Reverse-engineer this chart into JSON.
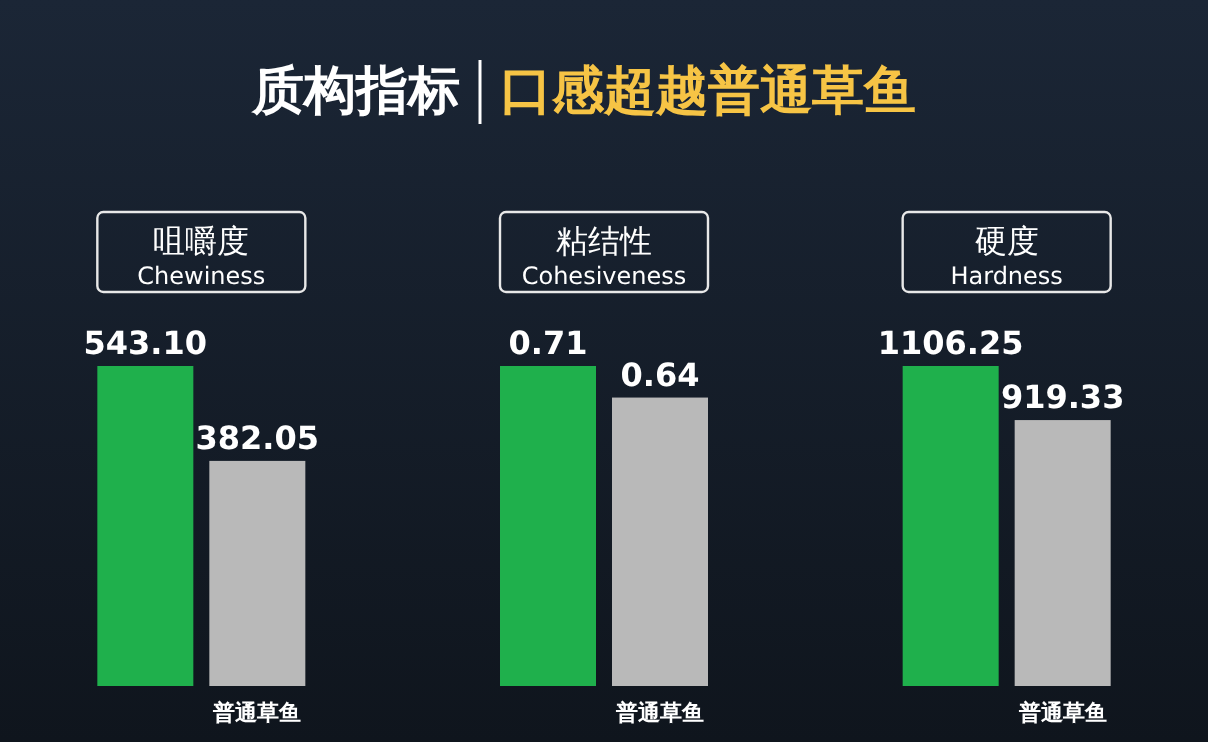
{
  "chart_data": [
    {
      "type": "bar",
      "title": "咀嚼度",
      "subtitle": "Chewiness",
      "annotations": [
        "质构指标",
        "口感超越普通草鱼"
      ],
      "categories": [
        null,
        "普通草鱼"
      ],
      "values": [
        543.1,
        382.05
      ],
      "value_labels": [
        "543.10",
        "382.05"
      ],
      "colors": [
        "#1fb04c",
        "#b9b9b9"
      ]
    },
    {
      "type": "bar",
      "title": "粘结性",
      "subtitle": "Cohesiveness",
      "categories": [
        null,
        "普通草鱼"
      ],
      "values": [
        0.71,
        0.64
      ],
      "value_labels": [
        "0.71",
        "0.64"
      ],
      "colors": [
        "#1fb04c",
        "#b9b9b9"
      ]
    },
    {
      "type": "bar",
      "title": "硬度",
      "subtitle": "Hardness",
      "categories": [
        null,
        "普通草鱼"
      ],
      "values": [
        1106.25,
        919.33
      ],
      "value_labels": [
        "1106.25",
        "919.33"
      ],
      "colors": [
        "#1fb04c",
        "#b9b9b9"
      ]
    }
  ]
}
